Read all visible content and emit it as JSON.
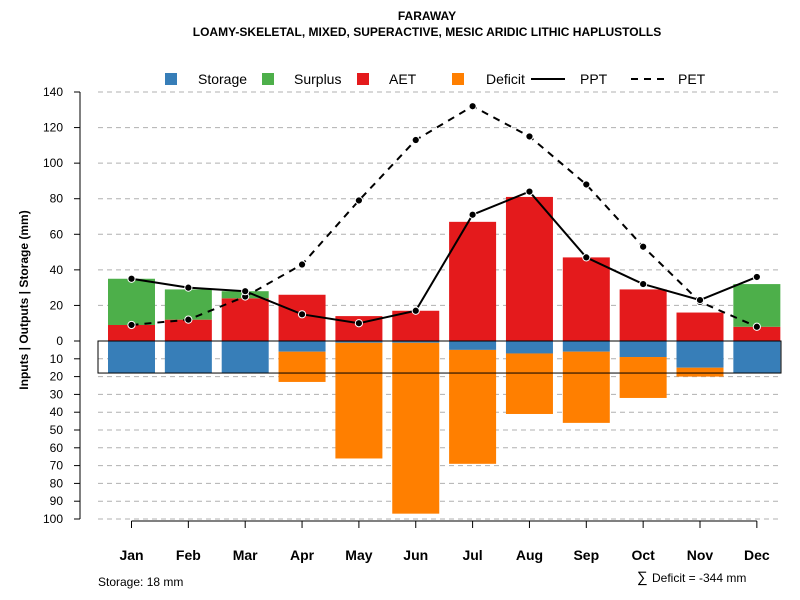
{
  "chart_data": {
    "type": "bar",
    "title": "FARAWAY",
    "subtitle": "LOAMY-SKELETAL, MIXED, SUPERACTIVE, MESIC ARIDIC LITHIC HAPLUSTOLLS",
    "ylabel": "Inputs | Outputs | Storage    (mm)",
    "categories": [
      "Jan",
      "Feb",
      "Mar",
      "Apr",
      "May",
      "Jun",
      "Jul",
      "Aug",
      "Sep",
      "Oct",
      "Nov",
      "Dec"
    ],
    "ylim_top": [
      0,
      140
    ],
    "ylim_bottom": [
      0,
      100
    ],
    "yticks_top": [
      "0",
      "20",
      "40",
      "60",
      "80",
      "100",
      "120",
      "140"
    ],
    "yticks_bottom": [
      "10",
      "20",
      "30",
      "40",
      "50",
      "60",
      "70",
      "80",
      "90",
      "100"
    ],
    "legend": [
      {
        "label": "Storage",
        "kind": "box",
        "color": "#377EB8"
      },
      {
        "label": "Surplus",
        "kind": "box",
        "color": "#4DAF4A"
      },
      {
        "label": "AET",
        "kind": "box",
        "color": "#E41A1C"
      },
      {
        "label": "Deficit",
        "kind": "box",
        "color": "#FF7F00"
      },
      {
        "label": "PPT",
        "kind": "solid"
      },
      {
        "label": "PET",
        "kind": "dashed"
      }
    ],
    "series": [
      {
        "name": "AET",
        "color": "#E41A1C",
        "values": [
          9,
          12,
          24,
          26,
          14,
          17,
          67,
          81,
          47,
          29,
          16,
          8
        ]
      },
      {
        "name": "Surplus",
        "color": "#4DAF4A",
        "values": [
          26,
          17,
          4,
          0,
          0,
          0,
          0,
          0,
          0,
          0,
          0,
          24
        ]
      },
      {
        "name": "Storage",
        "color": "#377EB8",
        "values": [
          18,
          18,
          18,
          6,
          1,
          1,
          5,
          7,
          6,
          9,
          15,
          18
        ]
      },
      {
        "name": "Deficit",
        "color": "#FF7F00",
        "values": [
          0,
          0,
          0,
          17,
          65,
          96,
          64,
          34,
          40,
          23,
          5,
          0
        ]
      },
      {
        "name": "PPT",
        "values": [
          35,
          30,
          28,
          15,
          10,
          17,
          71,
          84,
          47,
          32,
          23,
          36
        ]
      },
      {
        "name": "PET",
        "values": [
          9,
          12,
          25,
          43,
          79,
          113,
          132,
          115,
          88,
          53,
          22,
          8
        ]
      }
    ],
    "storage_capacity": 18,
    "footer_left": "Storage: 18 mm",
    "footer_right_symbol": "∑",
    "footer_right": "Deficit = -344 mm"
  }
}
